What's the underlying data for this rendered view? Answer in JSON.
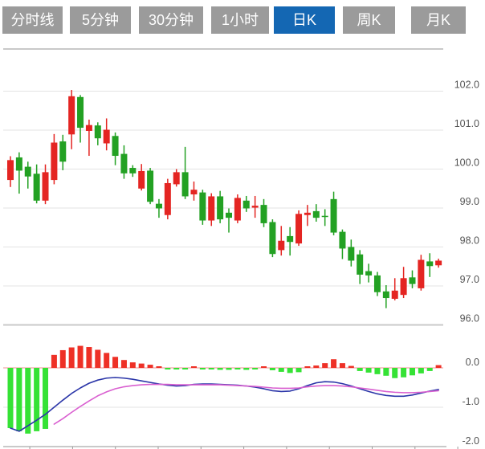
{
  "toolbar": {
    "tabs": [
      {
        "label": "分时线",
        "active": false
      },
      {
        "label": "5分钟",
        "active": false
      },
      {
        "label": "30分钟",
        "active": false
      },
      {
        "label": "1小时",
        "active": false
      },
      {
        "label": "日K",
        "active": true
      },
      {
        "label": "周K",
        "active": false
      },
      {
        "label": "月K",
        "active": false
      }
    ]
  },
  "price_axis": {
    "labels": [
      "102.0",
      "101.0",
      "100.0",
      "99.0",
      "98.0",
      "97.0",
      "96.0"
    ],
    "values": [
      102,
      101,
      100,
      99,
      98,
      97,
      96
    ]
  },
  "macd_axis": {
    "labels": [
      "0.0",
      "-1.0",
      "-2.0"
    ],
    "values": [
      0,
      -1,
      -2
    ]
  },
  "colors": {
    "up": "#e42522",
    "down": "#23a123",
    "hist_up": "#ee3026",
    "hist_down": "#35e235",
    "dif_line": "#2a35a8",
    "dea_line": "#d95fd0",
    "zero_line": "#f09090",
    "grid": "#e3e3e3",
    "axis": "#c9c9c9",
    "tick": "#999999",
    "label_text": "#555555",
    "tab_bg": "#9b9b9b",
    "tab_active_bg": "#1467b3",
    "tab_text": "#ffffff"
  },
  "chart_data": {
    "type": "candlestick",
    "panels": [
      "price",
      "macd"
    ],
    "grid": true,
    "legend": false,
    "price_ylim": [
      95.8,
      102.2
    ],
    "macd_ylim": [
      -2.0,
      0.6
    ],
    "candles_ohlc": [
      [
        99.72,
        100.33,
        99.54,
        100.23
      ],
      [
        100.3,
        100.43,
        99.37,
        99.96
      ],
      [
        100.06,
        100.19,
        99.5,
        99.81
      ],
      [
        99.88,
        100.12,
        99.12,
        99.19
      ],
      [
        99.19,
        100.12,
        99.1,
        99.92
      ],
      [
        99.72,
        100.9,
        99.61,
        100.68
      ],
      [
        100.71,
        100.88,
        99.97,
        100.19
      ],
      [
        100.89,
        102.03,
        100.51,
        101.87
      ],
      [
        101.85,
        101.9,
        100.68,
        101.06
      ],
      [
        100.98,
        101.27,
        100.34,
        101.13
      ],
      [
        101.12,
        101.2,
        100.61,
        100.79
      ],
      [
        100.66,
        101.3,
        100.48,
        101.01
      ],
      [
        100.85,
        100.94,
        100.1,
        100.34
      ],
      [
        100.39,
        100.61,
        99.75,
        99.89
      ],
      [
        100.03,
        100.1,
        99.8,
        99.89
      ],
      [
        99.5,
        100.13,
        99.45,
        99.95
      ],
      [
        99.96,
        100.03,
        99.1,
        99.16
      ],
      [
        99.11,
        99.23,
        98.75,
        98.99
      ],
      [
        98.82,
        99.75,
        98.71,
        99.64
      ],
      [
        99.61,
        100.0,
        99.55,
        99.92
      ],
      [
        99.92,
        100.57,
        99.23,
        99.3
      ],
      [
        99.35,
        99.68,
        99.19,
        99.47
      ],
      [
        99.4,
        99.47,
        98.57,
        98.68
      ],
      [
        98.68,
        99.38,
        98.54,
        99.3
      ],
      [
        99.3,
        99.44,
        98.61,
        98.71
      ],
      [
        98.88,
        98.99,
        98.37,
        98.75
      ],
      [
        98.68,
        99.35,
        98.61,
        99.26
      ],
      [
        99.19,
        99.31,
        98.9,
        98.99
      ],
      [
        99.01,
        99.31,
        98.75,
        99.06
      ],
      [
        99.08,
        99.23,
        98.51,
        98.61
      ],
      [
        98.64,
        98.71,
        97.74,
        97.82
      ],
      [
        97.92,
        98.54,
        97.78,
        98.16
      ],
      [
        98.28,
        98.51,
        97.78,
        98.13
      ],
      [
        98.09,
        98.94,
        98.03,
        98.85
      ],
      [
        98.82,
        99.08,
        98.54,
        98.88
      ],
      [
        98.92,
        99.1,
        98.65,
        98.75
      ],
      [
        98.8,
        98.97,
        98.54,
        98.77
      ],
      [
        99.23,
        99.42,
        98.3,
        98.37
      ],
      [
        98.39,
        98.45,
        97.69,
        97.96
      ],
      [
        98.0,
        98.19,
        97.5,
        97.65
      ],
      [
        97.81,
        97.92,
        97.05,
        97.29
      ],
      [
        97.38,
        97.57,
        97.09,
        97.27
      ],
      [
        97.27,
        97.36,
        96.74,
        96.84
      ],
      [
        96.86,
        97.02,
        96.43,
        96.69
      ],
      [
        96.67,
        97.2,
        96.63,
        96.88
      ],
      [
        96.77,
        97.49,
        96.69,
        97.2
      ],
      [
        97.22,
        97.4,
        96.94,
        97.05
      ],
      [
        96.94,
        97.8,
        96.88,
        97.67
      ],
      [
        97.63,
        97.84,
        97.23,
        97.51
      ],
      [
        97.53,
        97.7,
        97.47,
        97.65
      ]
    ],
    "macd": {
      "hist": [
        -1.53,
        -1.61,
        -1.67,
        -1.61,
        -1.55,
        0.33,
        0.45,
        0.52,
        0.56,
        0.53,
        0.46,
        0.38,
        0.28,
        0.2,
        0.14,
        0.11,
        0.08,
        0.04,
        -0.03,
        -0.04,
        -0.04,
        0.04,
        -0.03,
        -0.04,
        -0.05,
        -0.05,
        -0.04,
        -0.05,
        -0.04,
        0.04,
        -0.06,
        -0.1,
        -0.13,
        -0.11,
        0.02,
        0.06,
        0.12,
        0.22,
        0.12,
        0.05,
        -0.08,
        -0.12,
        -0.16,
        -0.2,
        -0.26,
        -0.24,
        -0.19,
        -0.14,
        -0.08,
        0.07
      ],
      "dif": [
        -1.53,
        -1.61,
        -1.47,
        -1.33,
        -1.18,
        -1.0,
        -0.82,
        -0.65,
        -0.51,
        -0.39,
        -0.31,
        -0.26,
        -0.245,
        -0.26,
        -0.29,
        -0.33,
        -0.37,
        -0.41,
        -0.44,
        -0.46,
        -0.45,
        -0.42,
        -0.41,
        -0.41,
        -0.42,
        -0.43,
        -0.44,
        -0.46,
        -0.49,
        -0.53,
        -0.58,
        -0.6,
        -0.59,
        -0.53,
        -0.45,
        -0.38,
        -0.35,
        -0.36,
        -0.4,
        -0.46,
        -0.53,
        -0.6,
        -0.66,
        -0.7,
        -0.72,
        -0.72,
        -0.69,
        -0.64,
        -0.59,
        -0.55
      ],
      "dea": [
        null,
        null,
        null,
        null,
        null,
        -1.43,
        -1.29,
        -1.13,
        -0.98,
        -0.84,
        -0.71,
        -0.61,
        -0.53,
        -0.48,
        -0.45,
        -0.43,
        -0.42,
        -0.42,
        -0.42,
        -0.43,
        -0.43,
        -0.43,
        -0.43,
        -0.43,
        -0.43,
        -0.44,
        -0.45,
        -0.46,
        -0.47,
        -0.49,
        -0.51,
        -0.52,
        -0.52,
        -0.51,
        -0.48,
        -0.46,
        -0.45,
        -0.45,
        -0.46,
        -0.48,
        -0.51,
        -0.54,
        -0.57,
        -0.6,
        -0.62,
        -0.63,
        -0.63,
        -0.62,
        -0.6,
        -0.58
      ]
    }
  }
}
